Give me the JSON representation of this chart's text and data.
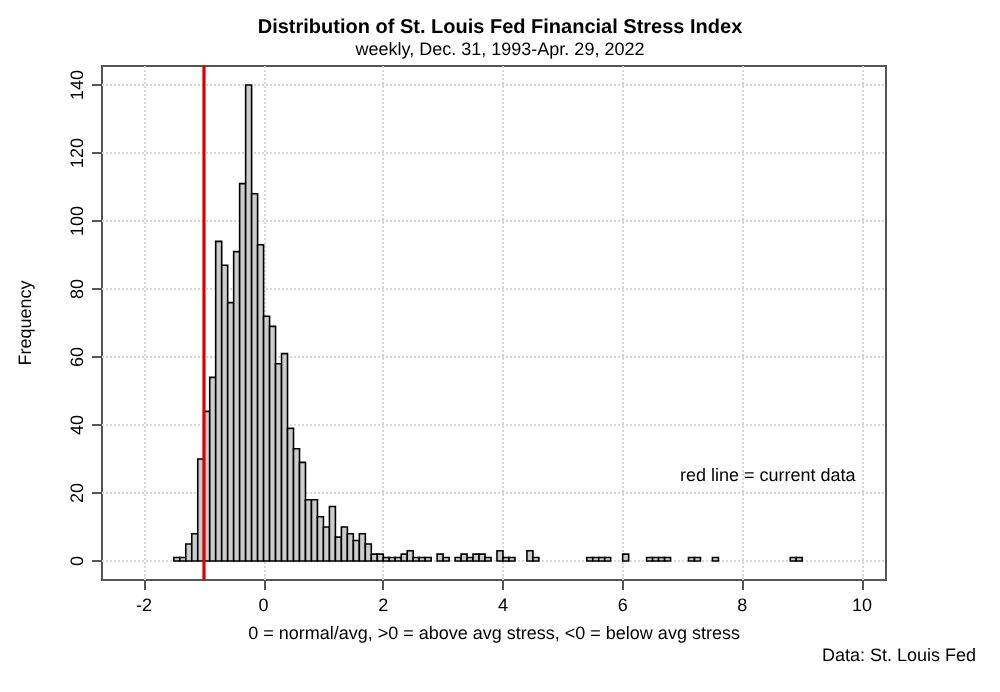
{
  "chart_data": {
    "type": "histogram",
    "title": "Distribution of St. Louis Fed Financial Stress Index",
    "subtitle": "weekly, Dec. 31, 1993-Apr. 29, 2022",
    "xlabel": "0 = normal/avg, >0 = above avg stress, <0 = below avg stress",
    "ylabel": "Frequency",
    "bins": [
      -1.5,
      -1.4,
      -1.3,
      -1.2,
      -1.1,
      -1.0,
      -0.9,
      -0.8,
      -0.7,
      -0.6,
      -0.5,
      -0.4,
      -0.3,
      -0.2,
      -0.1,
      0.0,
      0.1,
      0.2,
      0.3,
      0.4,
      0.5,
      0.6,
      0.7,
      0.8,
      0.9,
      1.0,
      1.1,
      1.2,
      1.3,
      1.4,
      1.5,
      1.6,
      1.7,
      1.8,
      1.9,
      2.0,
      2.1,
      2.2,
      2.3,
      2.4,
      2.5,
      2.6,
      2.7,
      2.8,
      2.9,
      3.0,
      3.1,
      3.2,
      3.3,
      3.4,
      3.5,
      3.6,
      3.7,
      3.8,
      3.9,
      4.0,
      4.1,
      4.2,
      4.3,
      4.4,
      4.5,
      4.6,
      4.7,
      4.8,
      4.9,
      5.0,
      5.1,
      5.2,
      5.3,
      5.4,
      5.5,
      5.6,
      5.7,
      5.8,
      5.9,
      6.0,
      6.1,
      6.2,
      6.3,
      6.4,
      6.5,
      6.6,
      6.7,
      6.8,
      6.9,
      7.0,
      7.1,
      7.2,
      7.3,
      7.4,
      7.5,
      7.6,
      7.7,
      7.8,
      7.9,
      8.0,
      8.1,
      8.2,
      8.3,
      8.4,
      8.5,
      8.6,
      8.7,
      8.8,
      8.9,
      9.0
    ],
    "values": [
      1,
      1,
      5,
      8,
      30,
      44,
      54,
      94,
      87,
      76,
      91,
      111,
      140,
      108,
      93,
      72,
      69,
      58,
      61,
      39,
      33,
      29,
      18,
      18,
      13,
      10,
      16,
      7,
      10,
      8,
      6,
      8,
      5,
      2,
      2,
      1,
      1,
      1,
      2,
      3,
      1,
      1,
      1,
      0,
      2,
      1,
      0,
      1,
      2,
      1,
      2,
      2,
      1,
      0,
      3,
      1,
      1,
      0,
      0,
      3,
      1,
      0,
      0,
      0,
      0,
      0,
      0,
      0,
      0,
      1,
      1,
      1,
      1,
      0,
      0,
      2,
      0,
      0,
      0,
      1,
      1,
      1,
      1,
      0,
      0,
      0,
      1,
      1,
      0,
      0,
      1,
      0,
      0,
      0,
      0,
      0,
      0,
      0,
      0,
      0,
      0,
      0,
      0,
      1,
      1
    ],
    "color": "#cccccc",
    "xlim": [
      -2.7,
      10.4
    ],
    "xticks": [
      -2,
      0,
      2,
      4,
      6,
      8,
      10
    ],
    "ylim": [
      -5.6,
      145.6
    ],
    "yticks": [
      0,
      20,
      40,
      60,
      80,
      100,
      120,
      140
    ],
    "grid": true,
    "ref_lines": [
      {
        "axis": "x",
        "value": -1.0,
        "color": "#dd0000"
      }
    ],
    "annotations": [
      "red line = current data",
      "Data: St. Louis Fed"
    ]
  }
}
